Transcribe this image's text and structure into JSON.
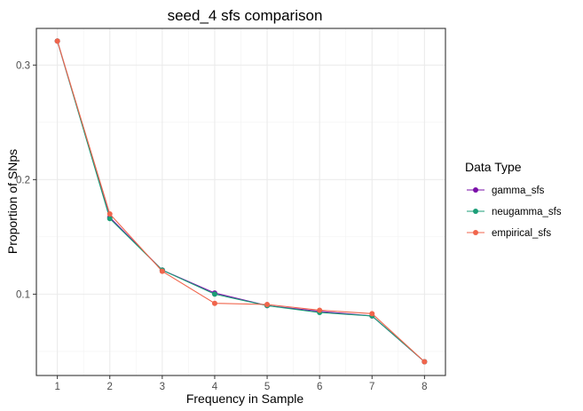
{
  "chart_data": {
    "type": "line",
    "title": "seed_4 sfs comparison",
    "xlabel": "Frequency in Sample",
    "ylabel": "Proportion of SNps",
    "x": [
      1,
      2,
      3,
      4,
      5,
      6,
      7,
      8
    ],
    "xlim": [
      0.6,
      8.4
    ],
    "ylim": [
      0.029,
      0.332
    ],
    "x_ticks": [
      1,
      2,
      3,
      4,
      5,
      6,
      7,
      8
    ],
    "y_ticks": [
      0.1,
      0.2,
      0.3
    ],
    "y_tick_labels": [
      "0.1",
      "0.2",
      "0.3"
    ],
    "grid": true,
    "legend_position": "right",
    "legend_title": "Data Type",
    "series": [
      {
        "name": "gamma_sfs",
        "color": "#7a0fa8",
        "values": [
          0.321,
          0.167,
          0.121,
          0.101,
          0.09,
          0.085,
          0.081,
          0.041
        ]
      },
      {
        "name": "neugamma_sfs",
        "color": "#1b9e77",
        "values": [
          0.321,
          0.166,
          0.121,
          0.1,
          0.09,
          0.084,
          0.081,
          0.041
        ]
      },
      {
        "name": "empirical_sfs",
        "color": "#f0654c",
        "values": [
          0.321,
          0.17,
          0.12,
          0.092,
          0.091,
          0.086,
          0.083,
          0.041
        ]
      }
    ]
  }
}
